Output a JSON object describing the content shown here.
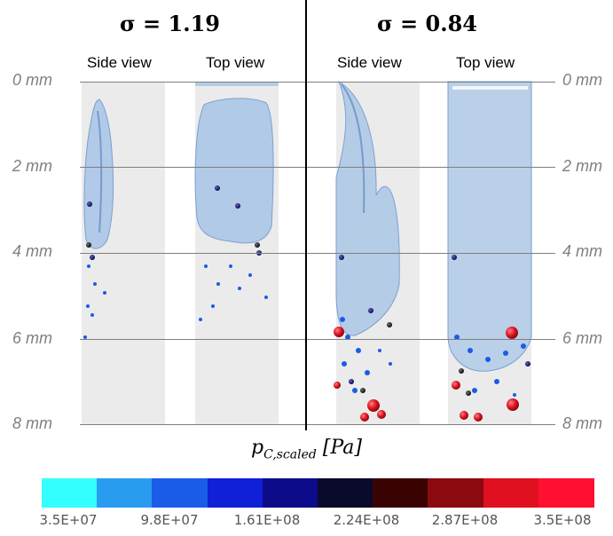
{
  "left_panel": {
    "title": "σ = 1.19",
    "side_label": "Side view",
    "top_label": "Top view"
  },
  "right_panel": {
    "title": "σ = 0.84",
    "side_label": "Side view",
    "top_label": "Top view"
  },
  "depth_axis": {
    "labels": [
      "0 mm",
      "2 mm",
      "4 mm",
      "6 mm",
      "8 mm"
    ]
  },
  "colorbar": {
    "label_main": "p",
    "label_sub": "C,scaled",
    "label_unit": "[Pa]",
    "colors": [
      "#33ffff",
      "#2a9cf0",
      "#1a5ce8",
      "#1020d8",
      "#0c0c8a",
      "#0a0a2a",
      "#3a0303",
      "#8b0a10",
      "#e01020",
      "#ff1030"
    ],
    "ticks": [
      "3.5E+07",
      "9.8E+07",
      "1.61E+08",
      "2.24E+08",
      "2.87E+08",
      "3.5E+08"
    ]
  }
}
